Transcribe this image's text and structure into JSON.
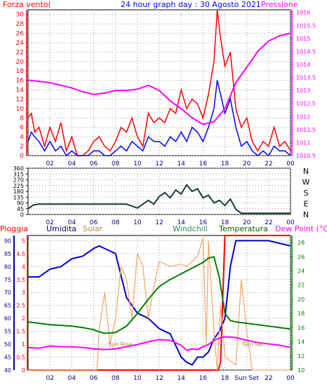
{
  "chart_data": [
    {
      "type": "line",
      "title": "24 hour graph day : 30 Agosto 2021",
      "left_axis_label": "Forza vento(",
      "right_axis_label": "Pressione",
      "x_ticks": [
        "02",
        "04",
        "06",
        "08",
        "10",
        "12",
        "14",
        "16",
        "18",
        "20",
        "22",
        "00"
      ],
      "x_range_hours": [
        0,
        24
      ],
      "y_left_range": [
        0,
        31
      ],
      "y_left_ticks": [
        0,
        1,
        2,
        3,
        4,
        5,
        6,
        7,
        8,
        9,
        10,
        11,
        12,
        13,
        14,
        15,
        16,
        17,
        18,
        19,
        20,
        21,
        22,
        23,
        24,
        25,
        26,
        27,
        28,
        29,
        30
      ],
      "y_left_tick_labels": [
        "0",
        "2",
        "4",
        "6",
        "8",
        "10",
        "12",
        "14",
        "16",
        "18",
        "20",
        "22",
        "24",
        "26",
        "28",
        "30"
      ],
      "y_right_range": [
        1010.5,
        1016.1
      ],
      "y_right_ticks": [
        "1010.5",
        "1011",
        "1011.5",
        "1012",
        "1012.5",
        "1013",
        "1013.5",
        "1014",
        "1014.5",
        "1015",
        "1015.5",
        "1016"
      ],
      "grid": true,
      "colors": {
        "gust": "#ff0000",
        "wind": "#0000ff",
        "pressure": "#ff00ff"
      },
      "series": [
        {
          "key": "gust",
          "x": [
            0,
            0.3,
            0.6,
            1,
            1.5,
            2,
            2.5,
            3,
            3.5,
            4,
            4.5,
            5,
            5.5,
            6,
            6.5,
            7,
            7.5,
            8,
            8.5,
            9,
            9.5,
            10,
            10.5,
            11,
            11.5,
            12,
            12.5,
            13,
            13.5,
            14,
            14.5,
            15,
            15.5,
            16,
            16.5,
            17,
            17.3,
            17.6,
            18,
            18.5,
            19,
            19.5,
            20,
            20.5,
            21,
            21.5,
            22,
            22.5,
            23,
            23.5,
            24
          ],
          "y": [
            8,
            9,
            5,
            6,
            2,
            6,
            3,
            7,
            1,
            4,
            0,
            0,
            1,
            3,
            4,
            2,
            1,
            3,
            6,
            5,
            8,
            4,
            2,
            9,
            7,
            8,
            7,
            10,
            9,
            14,
            10,
            12,
            11,
            8,
            13,
            20,
            31,
            25,
            19,
            22,
            10,
            6,
            8,
            3,
            1,
            3,
            2,
            6,
            2,
            3,
            1
          ]
        },
        {
          "key": "wind",
          "x": [
            0,
            0.3,
            0.6,
            1,
            1.5,
            2,
            2.5,
            3,
            3.5,
            4,
            4.5,
            5,
            5.5,
            6,
            6.5,
            7,
            7.5,
            8,
            8.5,
            9,
            9.5,
            10,
            10.5,
            11,
            11.5,
            12,
            12.5,
            13,
            13.5,
            14,
            14.5,
            15,
            15.5,
            16,
            16.5,
            17,
            17.3,
            17.6,
            18,
            18.5,
            19,
            19.5,
            20,
            20.5,
            21,
            21.5,
            22,
            22.5,
            23,
            23.5,
            24
          ],
          "y": [
            3,
            5,
            4,
            3,
            1,
            3,
            1,
            2,
            0,
            1,
            0,
            0,
            0,
            1,
            1,
            0,
            0,
            1,
            2,
            1,
            3,
            2,
            1,
            4,
            3,
            3,
            2,
            4,
            3,
            5,
            3,
            6,
            5,
            3,
            6,
            10,
            16,
            13,
            9,
            12,
            6,
            2,
            3,
            1,
            0,
            1,
            0,
            2,
            1,
            1,
            0
          ]
        },
        {
          "key": "pressure",
          "x": [
            0,
            1,
            2,
            3,
            4,
            5,
            6,
            7,
            8,
            9,
            10,
            11,
            12,
            13,
            14,
            15,
            16,
            17,
            18,
            19,
            20,
            21,
            22,
            23,
            24
          ],
          "y": [
            1013.4,
            1013.35,
            1013.3,
            1013.2,
            1013.1,
            1012.95,
            1012.85,
            1012.9,
            1013.0,
            1013.0,
            1013.05,
            1013.2,
            1013.0,
            1012.6,
            1012.3,
            1011.95,
            1011.7,
            1011.8,
            1012.3,
            1013.3,
            1013.9,
            1014.5,
            1014.9,
            1015.1,
            1015.2
          ]
        }
      ]
    },
    {
      "type": "line",
      "x_ticks": [
        "02",
        "04",
        "06",
        "08",
        "10",
        "12",
        "14",
        "16",
        "18",
        "20",
        "22",
        "00"
      ],
      "x_range_hours": [
        0,
        24
      ],
      "y_range": [
        0,
        360
      ],
      "y_ticks": [
        "0",
        "45",
        "90",
        "135",
        "180",
        "225",
        "270",
        "315",
        "360"
      ],
      "right_labels": [
        "N",
        "W",
        "S",
        "E",
        "N"
      ],
      "grid": true,
      "series_color": "#1a3a3a",
      "x": [
        0,
        0.5,
        1,
        2,
        3,
        4,
        5,
        6,
        7,
        8,
        9,
        10,
        11,
        11.5,
        12,
        12.5,
        13,
        13.5,
        14,
        14.5,
        15,
        15.5,
        16,
        16.5,
        17,
        17.5,
        18,
        18.5,
        19,
        19.5,
        20,
        21,
        22,
        23,
        24
      ],
      "y": [
        45,
        75,
        80,
        80,
        80,
        80,
        80,
        80,
        80,
        80,
        80,
        50,
        110,
        80,
        140,
        170,
        130,
        190,
        160,
        230,
        180,
        200,
        130,
        150,
        90,
        110,
        70,
        120,
        40,
        10,
        10,
        10,
        10,
        10,
        10
      ]
    },
    {
      "type": "line",
      "labels": [
        "Pioggia",
        "Umidita",
        "Solar",
        "Windchill",
        "Temperatura",
        "Dew Point (°C)"
      ],
      "label_colors": [
        "#ff0000",
        "#00008b",
        "#c08040",
        "#2e8b57",
        "#006400",
        "#ff00ff"
      ],
      "x_ticks": [
        "02",
        "04",
        "06",
        "08",
        "10",
        "12",
        "14",
        "16",
        "18",
        "Sun Set",
        "22",
        "00"
      ],
      "annotations": [
        "Sun Rise",
        "Sun Set"
      ],
      "x_range_hours": [
        0,
        24
      ],
      "y_rain_range": [
        0,
        5.2
      ],
      "y_rain_ticks": [
        "0",
        "0.5",
        "1",
        "1.5",
        "2",
        "2.5",
        "3",
        "3.5",
        "4",
        "4.5",
        "5"
      ],
      "y_hum_range": [
        40,
        92
      ],
      "y_hum_ticks": [
        "40",
        "45",
        "50",
        "55",
        "60",
        "65",
        "70",
        "75",
        "80",
        "85",
        "90"
      ],
      "y_temp_range": [
        10,
        29
      ],
      "y_temp_ticks": [
        "10",
        "12",
        "14",
        "16",
        "18",
        "20",
        "22",
        "24",
        "26",
        "28"
      ],
      "grid": true,
      "series": [
        {
          "name": "Pioggia",
          "color": "#ff0000",
          "x": [
            0,
            17.4,
            17.6,
            18,
            24
          ],
          "y": [
            0,
            0,
            0.3,
            5.2,
            5.2
          ]
        },
        {
          "name": "Umidita",
          "color": "#0000cd",
          "x": [
            0,
            1,
            2,
            3,
            4,
            5,
            6,
            6.5,
            7,
            8,
            9,
            10,
            11,
            12,
            13,
            14,
            14.5,
            15,
            15.5,
            16,
            16.5,
            17,
            17.5,
            18,
            18.5,
            19,
            20,
            21,
            22,
            23,
            24
          ],
          "y": [
            76,
            76,
            79,
            80,
            83,
            84,
            87,
            88,
            87,
            85,
            68,
            62,
            60,
            56,
            54,
            45,
            43,
            42,
            45,
            45,
            47,
            52,
            55,
            60,
            80,
            90,
            90,
            90,
            90,
            89,
            88
          ]
        },
        {
          "name": "Solar",
          "color": "#f4a460",
          "x": [
            0,
            6.3,
            6.5,
            7,
            7.5,
            8,
            8.5,
            9,
            9.5,
            10,
            10.5,
            11,
            11.5,
            12,
            12.5,
            13,
            14,
            14.5,
            15,
            15.5,
            16,
            16.3,
            16.5,
            17,
            17.3,
            17.6,
            18,
            19,
            19.5,
            20,
            20.5,
            21,
            24
          ],
          "y": [
            0,
            0,
            1.5,
            3,
            1,
            2,
            4,
            3.5,
            2,
            4.5,
            4,
            2,
            3.2,
            4.2,
            4.1,
            4.0,
            4.1,
            4.0,
            4.2,
            4.4,
            5.1,
            1,
            5.0,
            1.5,
            0,
            2.5,
            0.5,
            0.2,
            3.5,
            1.5,
            0,
            0,
            0
          ]
        },
        {
          "name": "Temperatura",
          "color": "#008000",
          "x": [
            0,
            1,
            2,
            3,
            4,
            5,
            6,
            6.5,
            7,
            8,
            9,
            10,
            11,
            12,
            13,
            14,
            15,
            16,
            16.5,
            17,
            17.5,
            18,
            18.5,
            19,
            20,
            21,
            22,
            23,
            24
          ],
          "y": [
            16.8,
            16.6,
            16.4,
            16.3,
            16.2,
            16.0,
            15.7,
            15.4,
            15.2,
            15.3,
            16.2,
            18.0,
            20.0,
            21.8,
            22.8,
            23.6,
            24.4,
            25.2,
            25.8,
            26.0,
            23.0,
            18.0,
            17.0,
            16.8,
            16.6,
            16.4,
            16.2,
            16.0,
            15.8
          ]
        },
        {
          "name": "Dew Point",
          "color": "#ff00ff",
          "x": [
            0,
            1,
            2,
            3,
            4,
            5,
            6,
            7,
            8,
            9,
            10,
            11,
            12,
            13,
            14,
            14.5,
            15,
            15.5,
            16,
            16.5,
            17,
            17.5,
            18,
            19,
            20,
            21,
            22,
            23,
            24
          ],
          "y": [
            13.2,
            13.1,
            13.4,
            13.3,
            13.3,
            13.2,
            13.0,
            12.9,
            13.0,
            13.3,
            13.6,
            14.0,
            14.3,
            14.2,
            13.5,
            12.8,
            13.0,
            12.9,
            13.3,
            13.6,
            14.2,
            14.5,
            14.7,
            14.6,
            14.2,
            13.9,
            13.7,
            13.5,
            13.2
          ]
        }
      ]
    }
  ]
}
